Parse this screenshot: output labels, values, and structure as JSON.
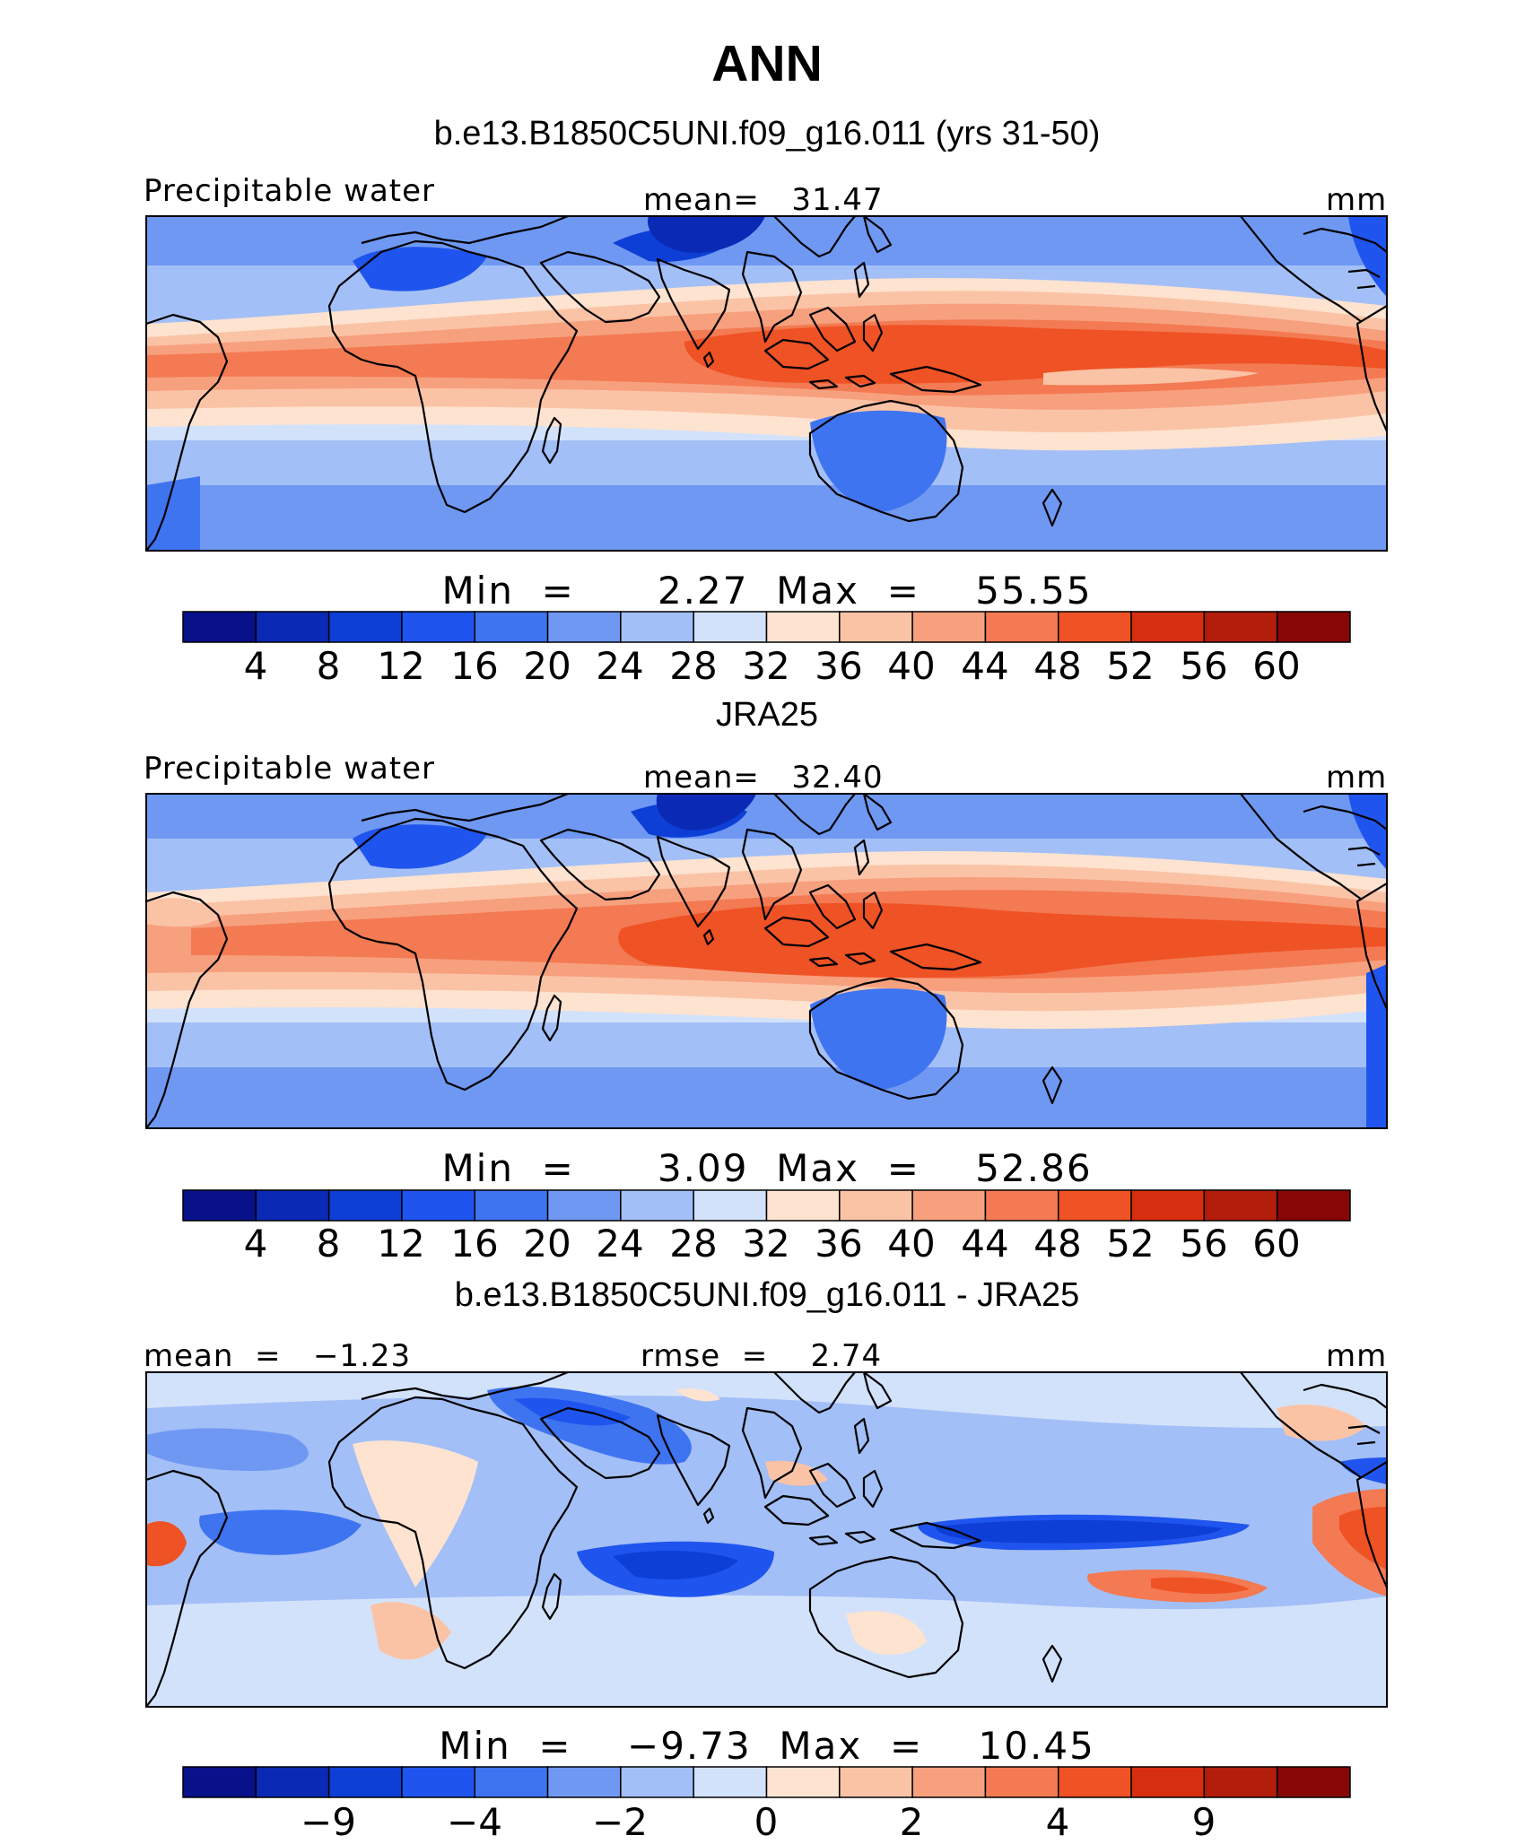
{
  "title": "ANN",
  "colors": {
    "abs_levels": [
      "#08118a",
      "#0a2ab5",
      "#0d3fd6",
      "#1f55ee",
      "#3f74f0",
      "#6f98f3",
      "#a3bff7",
      "#d3e2fb",
      "#fde3d0",
      "#fbc3a6",
      "#f7a07e",
      "#f37a53",
      "#ef5224",
      "#d62f10",
      "#b21d0c",
      "#870707"
    ],
    "diff_levels": [
      "#08118a",
      "#0a2ab5",
      "#0d3fd6",
      "#1f55ee",
      "#3f74f0",
      "#6f98f3",
      "#a3bff7",
      "#d3e2fb",
      "#fde3d0",
      "#fbc3a6",
      "#f7a07e",
      "#f37a53",
      "#ef5224",
      "#d62f10",
      "#b21d0c",
      "#870707"
    ]
  },
  "panels": [
    {
      "title": "b.e13.B1850C5UNI.f09_g16.011 (yrs 31-50)",
      "left_label": "Precipitable water",
      "center_label": "mean=   31.47",
      "right_label": "mm",
      "minmax": "Min  =      2.27  Max  =    55.55",
      "colorbar_ticks": [
        "4",
        "8",
        "12",
        "16",
        "20",
        "24",
        "28",
        "32",
        "36",
        "40",
        "44",
        "48",
        "52",
        "56",
        "60"
      ]
    },
    {
      "title": "JRA25",
      "left_label": "Precipitable water",
      "center_label": "mean=   32.40",
      "right_label": "mm",
      "minmax": "Min  =      3.09  Max  =    52.86",
      "colorbar_ticks": [
        "4",
        "8",
        "12",
        "16",
        "20",
        "24",
        "28",
        "32",
        "36",
        "40",
        "44",
        "48",
        "52",
        "56",
        "60"
      ]
    },
    {
      "title": "b.e13.B1850C5UNI.f09_g16.011 - JRA25",
      "left_label": "mean  =   −1.23",
      "center_label": "rmse  =    2.74",
      "right_label": "mm",
      "minmax": "Min  =    −9.73  Max  =    10.45",
      "colorbar_ticks": [
        "−9",
        "",
        "−4",
        "",
        "−2",
        "",
        "0",
        "",
        "2",
        "",
        "4",
        "",
        "9",
        "",
        ""
      ]
    }
  ]
}
